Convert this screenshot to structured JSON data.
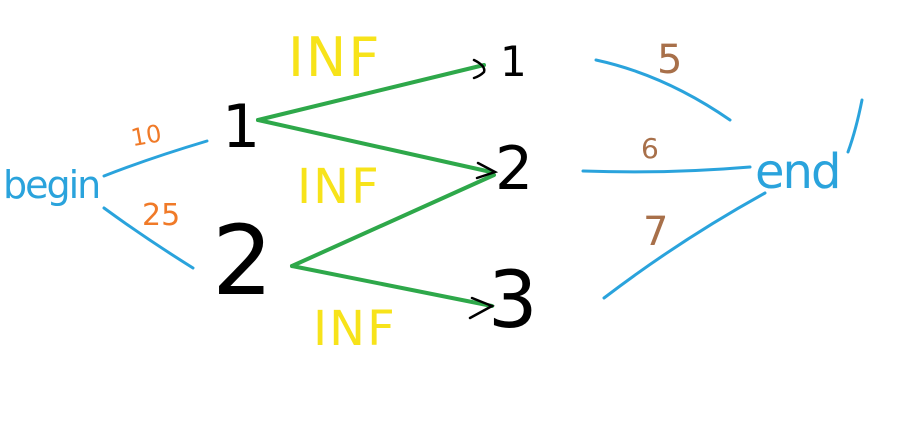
{
  "colors": {
    "background": "#ffffff",
    "source_sink_edges": "#2aa3dc",
    "flow_edges": "#2ea84a",
    "node_numbers": "#000000",
    "inf_labels": "#f7e31a",
    "left_capacity_labels": "#f07a28",
    "right_capacity_labels": "#a8704a"
  },
  "nodes": {
    "source": "begin",
    "sink": "end",
    "left": [
      "1",
      "2"
    ],
    "right": [
      "1",
      "2",
      "3"
    ]
  },
  "edge_labels": {
    "source_to_left": [
      "10",
      "25"
    ],
    "middle": [
      "INF",
      "INF",
      "INF"
    ],
    "right_to_sink": [
      "5",
      "6",
      "7"
    ]
  }
}
